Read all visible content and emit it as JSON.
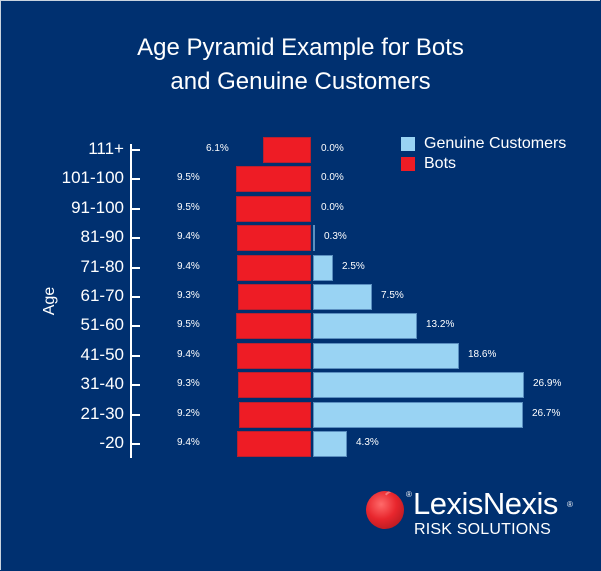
{
  "title_line1": "Age Pyramid Example for Bots",
  "title_line2": "and Genuine Customers",
  "y_axis_label": "Age",
  "legend": [
    {
      "label": "Genuine Customers",
      "color": "#99d3f3"
    },
    {
      "label": "Bots",
      "color": "#ee1c25"
    }
  ],
  "rows": [
    {
      "age": "111+",
      "bots": "6.1%",
      "genuine": "0.0%"
    },
    {
      "age": "101-100",
      "bots": "9.5%",
      "genuine": "0.0%"
    },
    {
      "age": "91-100",
      "bots": "9.5%",
      "genuine": "0.0%"
    },
    {
      "age": "81-90",
      "bots": "9.4%",
      "genuine": "0.3%"
    },
    {
      "age": "71-80",
      "bots": "9.4%",
      "genuine": "2.5%"
    },
    {
      "age": "61-70",
      "bots": "9.3%",
      "genuine": "7.5%"
    },
    {
      "age": "51-60",
      "bots": "9.5%",
      "genuine": "13.2%"
    },
    {
      "age": "41-50",
      "bots": "9.4%",
      "genuine": "18.6%"
    },
    {
      "age": "31-40",
      "bots": "9.3%",
      "genuine": "26.9%"
    },
    {
      "age": "21-30",
      "bots": "9.2%",
      "genuine": "26.7%"
    },
    {
      "age": "-20",
      "bots": "9.4%",
      "genuine": "4.3%"
    }
  ],
  "logo": {
    "brand": "LexisNexis",
    "registered": "®",
    "subtitle": "RISK SOLUTIONS"
  },
  "chart_data": {
    "type": "bar",
    "orientation": "horizontal",
    "subtype": "population-pyramid",
    "title": "Age Pyramid Example for Bots and Genuine Customers",
    "ylabel": "Age",
    "xlabel": "",
    "categories": [
      "111+",
      "101-100",
      "91-100",
      "81-90",
      "71-80",
      "61-70",
      "51-60",
      "41-50",
      "31-40",
      "21-30",
      "-20"
    ],
    "series": [
      {
        "name": "Bots",
        "side": "left",
        "color": "#ee1c25",
        "values": [
          6.1,
          9.5,
          9.5,
          9.4,
          9.4,
          9.3,
          9.5,
          9.4,
          9.3,
          9.2,
          9.4
        ]
      },
      {
        "name": "Genuine Customers",
        "side": "right",
        "color": "#99d3f3",
        "values": [
          0.0,
          0.0,
          0.0,
          0.3,
          2.5,
          7.5,
          13.2,
          18.6,
          26.9,
          26.7,
          4.3
        ]
      }
    ],
    "value_format": "percent",
    "legend_position": "top-right",
    "grid": false
  }
}
